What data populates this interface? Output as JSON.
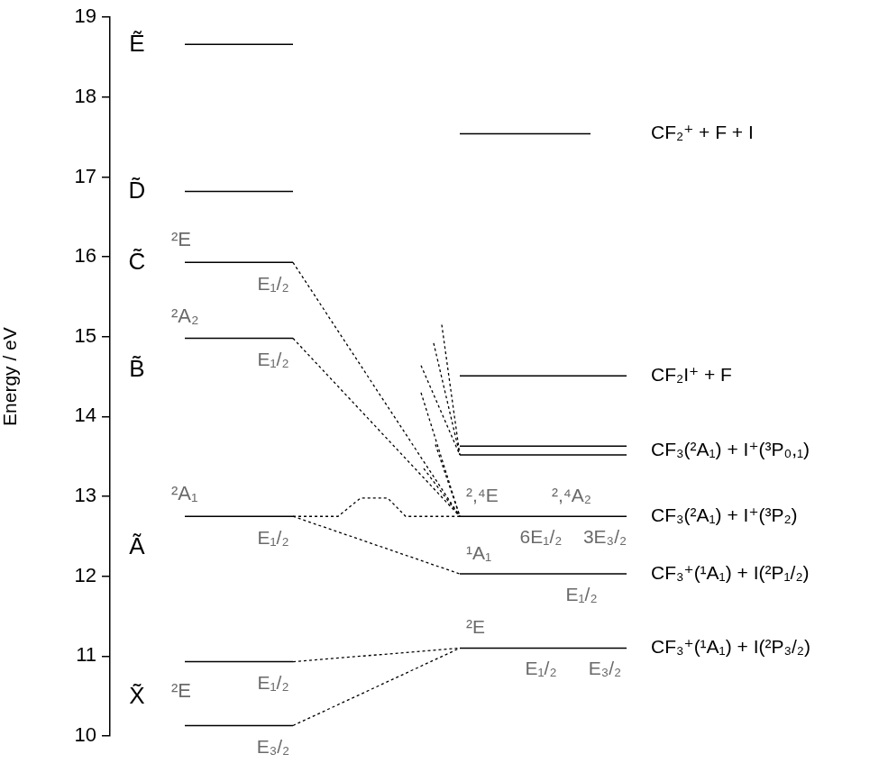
{
  "chart_data": {
    "type": "energy_level_diagram",
    "y_label": "Energy / eV",
    "ylim": [
      10,
      19
    ],
    "yticks": [
      10,
      11,
      12,
      13,
      14,
      15,
      16,
      17,
      18,
      19
    ],
    "grid": false,
    "left_states": [
      {
        "label": "Ẽ",
        "levels": [
          {
            "energy": 18.66
          }
        ]
      },
      {
        "label": "D̃",
        "levels": [
          {
            "energy": 16.82
          }
        ]
      },
      {
        "label": "C̃",
        "term": "²E",
        "levels": [
          {
            "energy": 15.93,
            "component": "E₁/₂"
          }
        ]
      },
      {
        "label": "B̃",
        "term": "²A₂",
        "levels": [
          {
            "energy": 14.98,
            "component": "E₁/₂"
          }
        ]
      },
      {
        "label": "Ã",
        "term": "²A₁",
        "levels": [
          {
            "energy": 12.75,
            "component": "E₁/₂"
          }
        ]
      },
      {
        "label": "X̃",
        "term": "²E",
        "levels": [
          {
            "energy": 10.93,
            "component": "E₁/₂"
          },
          {
            "energy": 10.13,
            "component": "E₃/₂"
          }
        ]
      }
    ],
    "right_limits": [
      {
        "label": "CF₂⁺ + F + I",
        "energies": [
          17.54
        ]
      },
      {
        "label": "CF₂I⁺ + F",
        "energies": [
          14.51
        ]
      },
      {
        "label": "CF₃(²A₁) + I⁺(³P₀,₁)",
        "energies": [
          13.63,
          13.52
        ]
      },
      {
        "label": "CF₃(²A₁) + I⁺(³P₂)",
        "energies": [
          12.75
        ],
        "terms": [
          "²,⁴E",
          "²,⁴A₂"
        ],
        "components": [
          "6E₁/₂",
          "3E₃/₂"
        ]
      },
      {
        "label": "CF₃⁺(¹A₁) + I(²P₁/₂)",
        "energies": [
          12.03
        ],
        "terms": [
          "¹A₁"
        ],
        "components": [
          "E₁/₂"
        ]
      },
      {
        "label": "CF₃⁺(¹A₁) + I(²P₃/₂)",
        "energies": [
          11.1
        ],
        "terms": [
          "²E"
        ],
        "components": [
          "E₁/₂",
          "E₃/₂"
        ]
      }
    ],
    "correlations": [
      {
        "from": 15.93,
        "to": 12.75
      },
      {
        "from": 14.98,
        "to": 12.75
      },
      {
        "from": 12.75,
        "to": 12.03
      },
      {
        "from": 10.93,
        "to": 11.1
      },
      {
        "from": 10.13,
        "to": 11.1
      }
    ],
    "avoided_crossing": {
      "from": 12.75,
      "peak": 12.98,
      "to": 12.75
    },
    "unassigned_correlations": [
      {
        "from": 15.15,
        "to": 13.52
      },
      {
        "from": 14.92,
        "to": 13.52
      },
      {
        "from": 14.64,
        "to": 13.52
      },
      {
        "from": 14.3,
        "to": 12.75
      },
      {
        "from": 13.65,
        "to": 12.75
      },
      {
        "from": 13.35,
        "to": 12.75
      }
    ]
  }
}
